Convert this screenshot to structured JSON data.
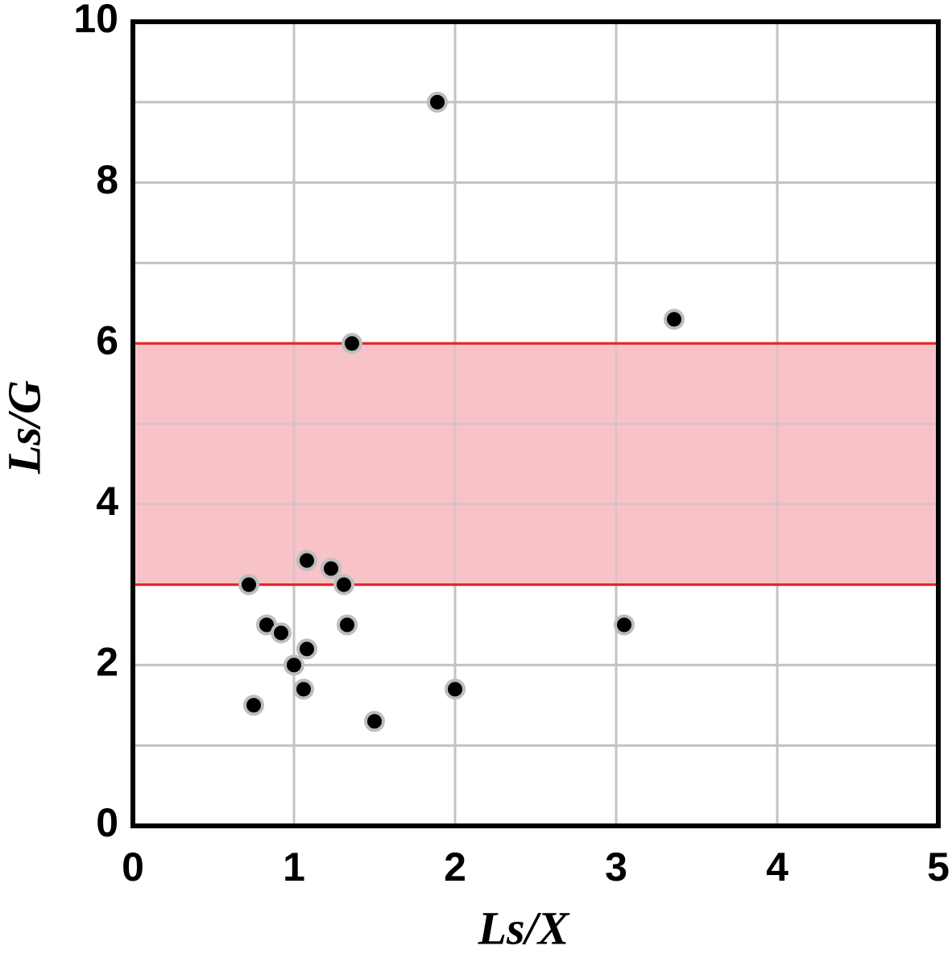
{
  "chart_data": {
    "type": "scatter",
    "x_label": "Ls/X",
    "y_label": "Ls/G",
    "x": [
      1.89,
      3.36,
      1.36,
      1.08,
      1.23,
      0.72,
      1.31,
      0.83,
      0.92,
      1.33,
      3.05,
      1.08,
      1.0,
      1.06,
      2.0,
      0.75,
      1.5
    ],
    "values": [
      9.0,
      6.3,
      6.0,
      3.3,
      3.2,
      3.0,
      3.0,
      2.5,
      2.4,
      2.5,
      2.5,
      2.2,
      2.0,
      1.7,
      1.7,
      1.5,
      1.3
    ],
    "color": "#000000",
    "xlim": [
      0,
      5
    ],
    "ylim": [
      0,
      10
    ],
    "xticks": [
      0,
      1,
      2,
      3,
      4,
      5
    ],
    "yticks": [
      0,
      2,
      4,
      6,
      8,
      10
    ],
    "minor_yticks": [
      1,
      3,
      5,
      7,
      9
    ],
    "grid": true,
    "band": {
      "y": [
        3,
        6
      ],
      "color": "#f7c0c5",
      "edge_color": "#e52528"
    }
  }
}
